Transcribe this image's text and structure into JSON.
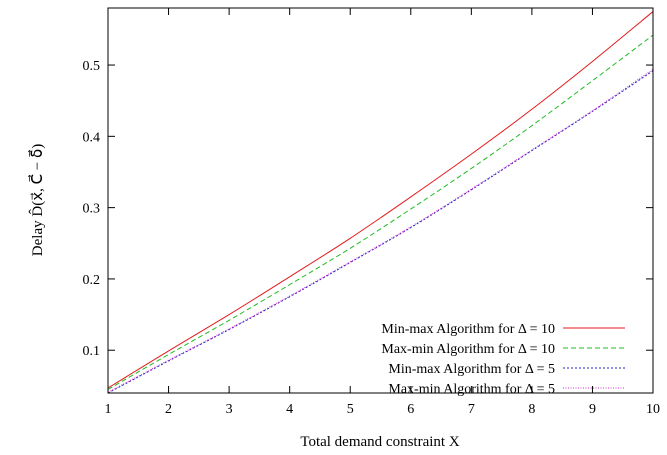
{
  "chart_data": {
    "type": "line",
    "title": "",
    "xlabel": "Total demand constraint X",
    "ylabel": "Delay D̂(x⃗, C⃗ − δ⃗)",
    "xlim": [
      1,
      10
    ],
    "ylim": [
      0.04,
      0.58
    ],
    "xticks": [
      1,
      2,
      3,
      4,
      5,
      6,
      7,
      8,
      9,
      10
    ],
    "yticks": [
      0.1,
      0.2,
      0.3,
      0.4,
      0.5
    ],
    "grid": false,
    "legend_position": "bottom-right",
    "x": [
      1,
      2,
      3,
      4,
      5,
      6,
      7,
      8,
      9,
      10
    ],
    "series": [
      {
        "name": "Min-max Algorithm for Δ = 10",
        "color": "#e41a1c",
        "dash": "solid",
        "values": [
          0.047,
          0.099,
          0.15,
          0.203,
          0.257,
          0.315,
          0.375,
          0.438,
          0.505,
          0.575
        ]
      },
      {
        "name": "Max-min Algorithm for Δ = 10",
        "color": "#22bb22",
        "dash": "dashed",
        "values": [
          0.045,
          0.094,
          0.142,
          0.192,
          0.243,
          0.298,
          0.355,
          0.415,
          0.478,
          0.542
        ]
      },
      {
        "name": "Min-max Algorithm for Δ = 5",
        "color": "#2222cc",
        "dash": "dotted",
        "values": [
          0.04,
          0.085,
          0.129,
          0.175,
          0.223,
          0.272,
          0.325,
          0.38,
          0.435,
          0.492
        ]
      },
      {
        "name": "Max-min Algorithm for Δ = 5",
        "color": "#cc33cc",
        "dash": "dotted-fine",
        "values": [
          0.041,
          0.086,
          0.13,
          0.176,
          0.224,
          0.273,
          0.326,
          0.381,
          0.436,
          0.494
        ]
      }
    ]
  }
}
